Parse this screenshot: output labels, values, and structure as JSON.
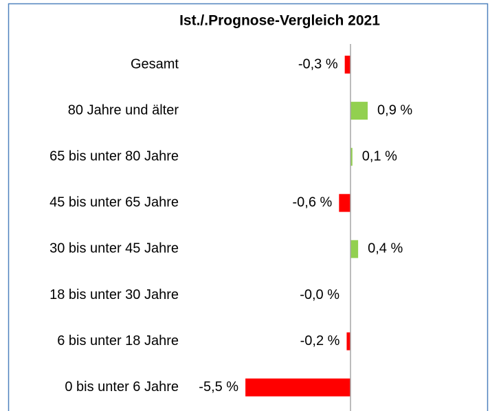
{
  "chart_data": {
    "type": "hbar",
    "title": "Ist./.Prognose-Vergleich 2021",
    "categories": [
      "Gesamt",
      "80 Jahre und älter",
      "65 bis unter 80 Jahre",
      "45 bis unter 65 Jahre",
      "30 bis unter 45 Jahre",
      "18 bis unter 30 Jahre",
      "6 bis unter 18 Jahre",
      "0 bis unter 6 Jahre"
    ],
    "values": [
      -0.3,
      0.9,
      0.1,
      -0.6,
      0.4,
      0,
      -0.2,
      -5.5
    ],
    "value_labels": [
      "-0,3 %",
      "0,9 %",
      "0,1 %",
      "-0,6  %",
      "0,4 %",
      "-0,0 %",
      "-0,2 %",
      "-5,5 %"
    ],
    "color_negative": "#ff0000",
    "color_positive": "#92d050"
  }
}
